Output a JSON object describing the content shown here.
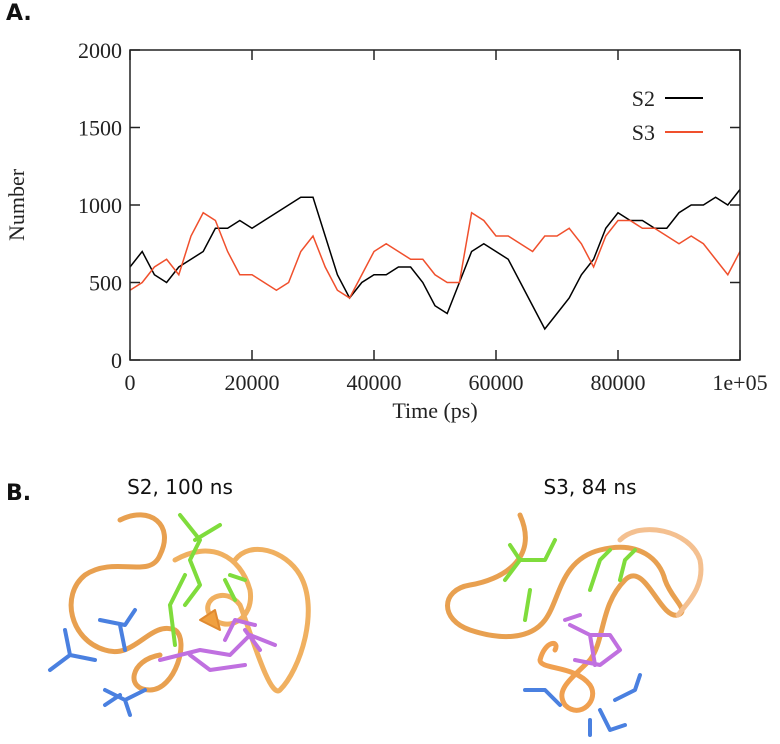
{
  "panels": [
    {
      "label": "A."
    },
    {
      "label": "B."
    }
  ],
  "chart_data": {
    "type": "line",
    "xlabel": "Time (ps)",
    "ylabel": "Number",
    "x": [
      0,
      2000,
      4000,
      6000,
      8000,
      10000,
      12000,
      14000,
      16000,
      18000,
      20000,
      22000,
      24000,
      26000,
      28000,
      30000,
      32000,
      34000,
      36000,
      38000,
      40000,
      42000,
      44000,
      46000,
      48000,
      50000,
      52000,
      54000,
      56000,
      58000,
      60000,
      62000,
      64000,
      66000,
      68000,
      70000,
      72000,
      74000,
      76000,
      78000,
      80000,
      82000,
      84000,
      86000,
      88000,
      90000,
      92000,
      94000,
      96000,
      98000,
      100000
    ],
    "series": [
      {
        "name": "S2",
        "color": "#000000",
        "values": [
          600,
          700,
          550,
          500,
          600,
          650,
          700,
          850,
          850,
          900,
          850,
          900,
          950,
          1000,
          1050,
          1050,
          800,
          550,
          400,
          500,
          550,
          550,
          600,
          600,
          500,
          350,
          300,
          500,
          700,
          750,
          700,
          650,
          500,
          350,
          200,
          300,
          400,
          550,
          650,
          850,
          950,
          900,
          900,
          850,
          850,
          950,
          1000,
          1000,
          1050,
          1000,
          1100
        ]
      },
      {
        "name": "S3",
        "color": "#f0502d",
        "values": [
          450,
          500,
          600,
          650,
          550,
          800,
          950,
          900,
          700,
          550,
          550,
          500,
          450,
          500,
          700,
          800,
          600,
          450,
          400,
          550,
          700,
          750,
          700,
          650,
          650,
          550,
          500,
          500,
          950,
          900,
          800,
          800,
          750,
          700,
          800,
          800,
          850,
          750,
          600,
          800,
          900,
          900,
          850,
          850,
          800,
          750,
          800,
          750,
          650,
          550,
          700
        ]
      }
    ],
    "xlim": [
      0,
      100000
    ],
    "ylim": [
      0,
      2000
    ],
    "xticks": [
      0,
      20000,
      40000,
      60000,
      80000,
      {
        "value": 100000,
        "label": "1e+05"
      }
    ],
    "yticks": [
      0,
      500,
      1000,
      1500,
      2000
    ],
    "legend": "upper right"
  },
  "structures": [
    {
      "title": "S2, 100 ns"
    },
    {
      "title": "S3, 84 ns"
    }
  ]
}
